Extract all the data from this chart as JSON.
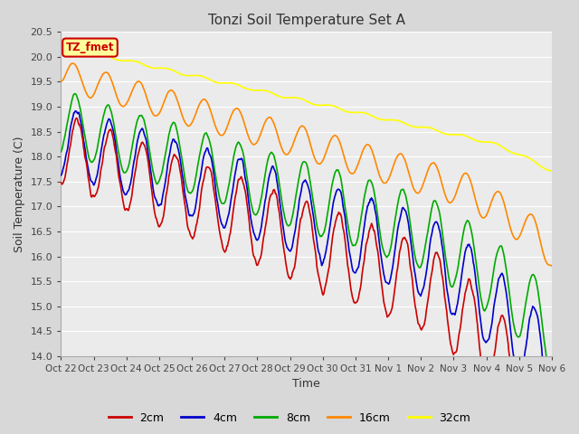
{
  "title": "Tonzi Soil Temperature Set A",
  "xlabel": "Time",
  "ylabel": "Soil Temperature (C)",
  "ylim": [
    14.0,
    20.5
  ],
  "yticks": [
    14.0,
    14.5,
    15.0,
    15.5,
    16.0,
    16.5,
    17.0,
    17.5,
    18.0,
    18.5,
    19.0,
    19.5,
    20.0,
    20.5
  ],
  "xtick_labels": [
    "Oct 22",
    "Oct 23",
    "Oct 24",
    "Oct 25",
    "Oct 26",
    "Oct 27",
    "Oct 28",
    "Oct 29",
    "Oct 30",
    "Oct 31",
    "Nov 1",
    "Nov 2",
    "Nov 3",
    "Nov 4",
    "Nov 5",
    "Nov 6"
  ],
  "colors": {
    "2cm": "#cc0000",
    "4cm": "#0000cc",
    "8cm": "#00aa00",
    "16cm": "#ff8800",
    "32cm": "#ffff00"
  },
  "legend_label": "TZ_fmet",
  "legend_box_facecolor": "#ffff99",
  "legend_box_edgecolor": "#cc0000",
  "background_color": "#d8d8d8",
  "plot_bg_color": "#ebebeb",
  "grid_color": "#ffffff",
  "line_width": 1.2
}
